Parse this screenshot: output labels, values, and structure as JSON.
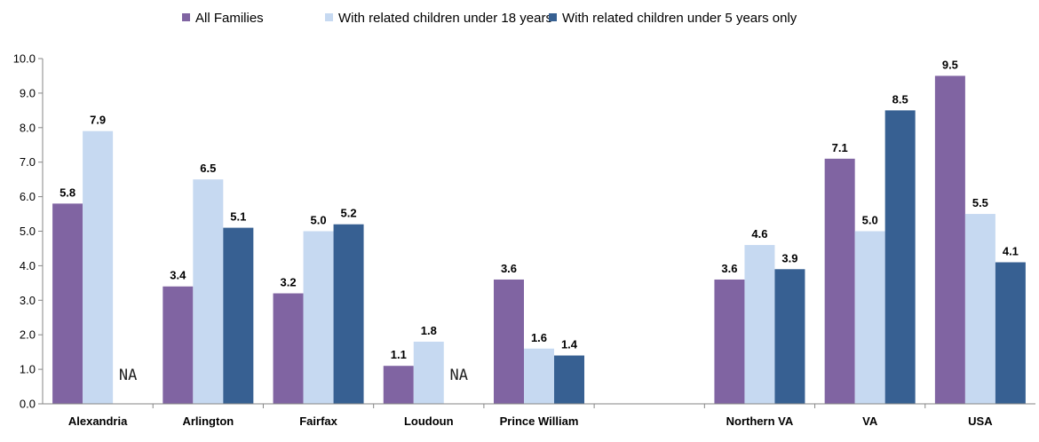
{
  "chart_data": {
    "type": "bar",
    "title": "",
    "xlabel": "",
    "ylabel": "",
    "ylim": [
      0,
      10
    ],
    "ytick_step": 1,
    "ytick_labels": [
      "0.0",
      "1.0",
      "2.0",
      "3.0",
      "4.0",
      "5.0",
      "6.0",
      "7.0",
      "8.0",
      "9.0",
      "10.0"
    ],
    "legend_position": "top",
    "grid": false,
    "categories": [
      "Alexandria",
      "Arlington",
      "Fairfax",
      "Loudoun",
      "Prince William",
      "",
      "Northern VA",
      "VA",
      "USA"
    ],
    "series": [
      {
        "name": "All Families",
        "color": "#8064A2",
        "values": [
          5.8,
          3.4,
          3.2,
          1.1,
          3.6,
          null,
          3.6,
          7.1,
          9.5
        ],
        "labels": [
          "5.8",
          "3.4",
          "3.2",
          "1.1",
          "3.6",
          "",
          "3.6",
          "7.1",
          "9.5"
        ]
      },
      {
        "name": "With related children under 18 years",
        "color": "#C6D9F1",
        "values": [
          7.9,
          6.5,
          5.0,
          1.8,
          1.6,
          null,
          4.6,
          5.0,
          5.5
        ],
        "labels": [
          "7.9",
          "6.5",
          "5.0",
          "1.8",
          "1.6",
          "",
          "4.6",
          "5.0",
          "5.5"
        ]
      },
      {
        "name": "With related children under 5 years only",
        "color": "#376092",
        "values": [
          null,
          5.1,
          5.2,
          null,
          1.4,
          null,
          3.9,
          8.5,
          4.1
        ],
        "labels": [
          "NA",
          "5.1",
          "5.2",
          "NA",
          "1.4",
          "",
          "3.9",
          "8.5",
          "4.1"
        ]
      }
    ]
  }
}
